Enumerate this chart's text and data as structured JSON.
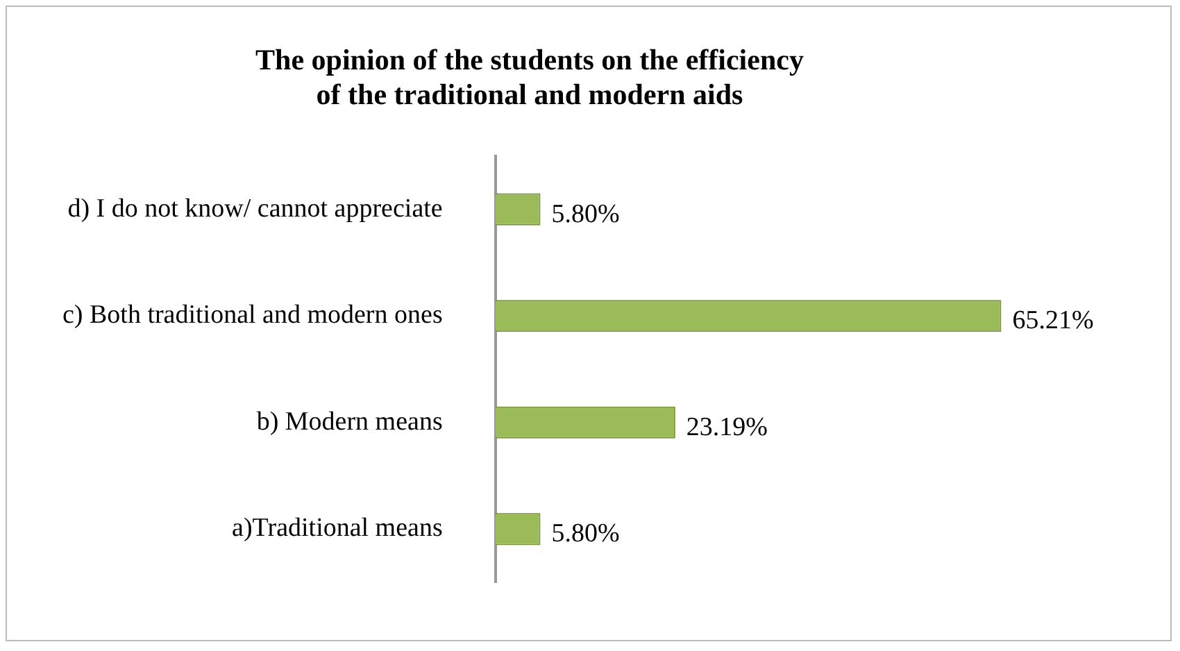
{
  "chart_data": {
    "type": "bar",
    "orientation": "horizontal",
    "title": "The opinion of the students on the efficiency\nof the traditional and modern aids",
    "categories": [
      "d) I do not know/ cannot appreciate",
      "c) Both traditional and modern ones",
      "b) Modern means",
      "a)Traditional means"
    ],
    "values": [
      5.8,
      65.21,
      23.19,
      5.8
    ],
    "value_labels": [
      "5.80%",
      "65.21%",
      "23.19%",
      "5.80%"
    ],
    "color": "#9bbb59",
    "grid": false,
    "legend": false,
    "tick_labels": "y"
  }
}
